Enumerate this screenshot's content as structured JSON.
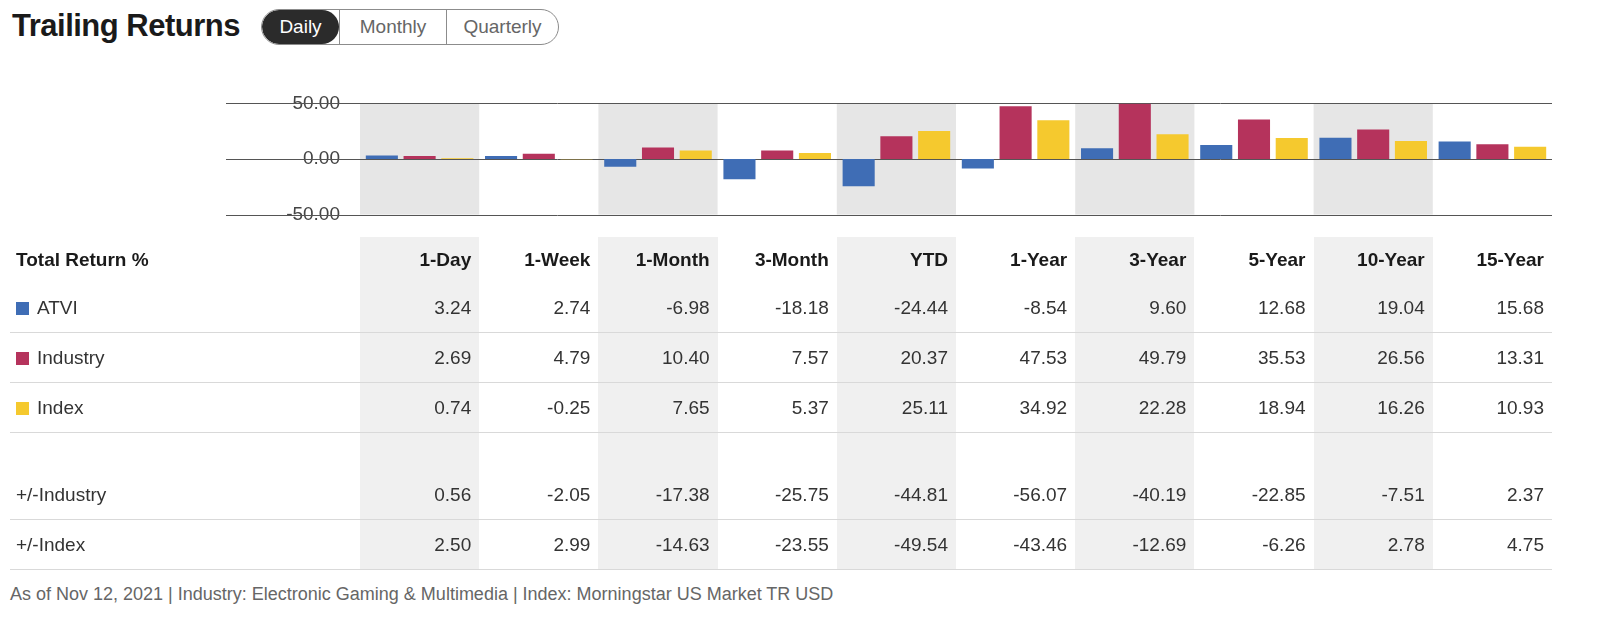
{
  "header": {
    "title": "Trailing Returns",
    "tabs": [
      {
        "label": "Daily",
        "selected": true
      },
      {
        "label": "Monthly",
        "selected": false
      },
      {
        "label": "Quarterly",
        "selected": false
      }
    ]
  },
  "chart_data": {
    "type": "bar",
    "categories": [
      "1-Day",
      "1-Week",
      "1-Month",
      "3-Month",
      "YTD",
      "1-Year",
      "3-Year",
      "5-Year",
      "10-Year",
      "15-Year"
    ],
    "series": [
      {
        "name": "ATVI",
        "color": "#3f6db5",
        "values": [
          3.24,
          2.74,
          -6.98,
          -18.18,
          -24.44,
          -8.54,
          9.6,
          12.68,
          19.04,
          15.68
        ]
      },
      {
        "name": "Industry",
        "color": "#b5335c",
        "values": [
          2.69,
          4.79,
          10.4,
          7.57,
          20.37,
          47.53,
          49.79,
          35.53,
          26.56,
          13.31
        ]
      },
      {
        "name": "Index",
        "color": "#f5c92e",
        "values": [
          0.74,
          -0.25,
          7.65,
          5.37,
          25.11,
          34.92,
          22.28,
          18.94,
          16.26,
          10.93
        ]
      }
    ],
    "ylim": [
      -50,
      50
    ],
    "yticks": [
      {
        "value": -50,
        "label": "-50.00"
      },
      {
        "value": 0,
        "label": "0.00"
      },
      {
        "value": 50,
        "label": "50.00"
      }
    ],
    "grid": true,
    "tick_labels": "y"
  },
  "table": {
    "columns": [
      "Total Return %",
      "1-Day",
      "1-Week",
      "1-Month",
      "3-Month",
      "YTD",
      "1-Year",
      "3-Year",
      "5-Year",
      "10-Year",
      "15-Year"
    ],
    "rows": [
      {
        "label": "ATVI",
        "cells": [
          "3.24",
          "2.74",
          "-6.98",
          "-18.18",
          "-24.44",
          "-8.54",
          "9.60",
          "12.68",
          "19.04",
          "15.68"
        ]
      },
      {
        "label": "Industry",
        "cells": [
          "2.69",
          "4.79",
          "10.40",
          "7.57",
          "20.37",
          "47.53",
          "49.79",
          "35.53",
          "26.56",
          "13.31"
        ]
      },
      {
        "label": "Index",
        "cells": [
          "0.74",
          "-0.25",
          "7.65",
          "5.37",
          "25.11",
          "34.92",
          "22.28",
          "18.94",
          "16.26",
          "10.93"
        ]
      }
    ],
    "difference_rows": [
      {
        "label": "+/-Industry",
        "cells": [
          "0.56",
          "-2.05",
          "-17.38",
          "-25.75",
          "-44.81",
          "-56.07",
          "-40.19",
          "-22.85",
          "-7.51",
          "2.37"
        ]
      },
      {
        "label": "+/-Index",
        "cells": [
          "2.50",
          "2.99",
          "-14.63",
          "-23.55",
          "-49.54",
          "-43.46",
          "-12.69",
          "-6.26",
          "2.78",
          "4.75"
        ]
      }
    ]
  },
  "footer": "As of Nov 12, 2021 | Industry: Electronic Gaming & Multimedia | Index: Morningstar US Market TR USD"
}
